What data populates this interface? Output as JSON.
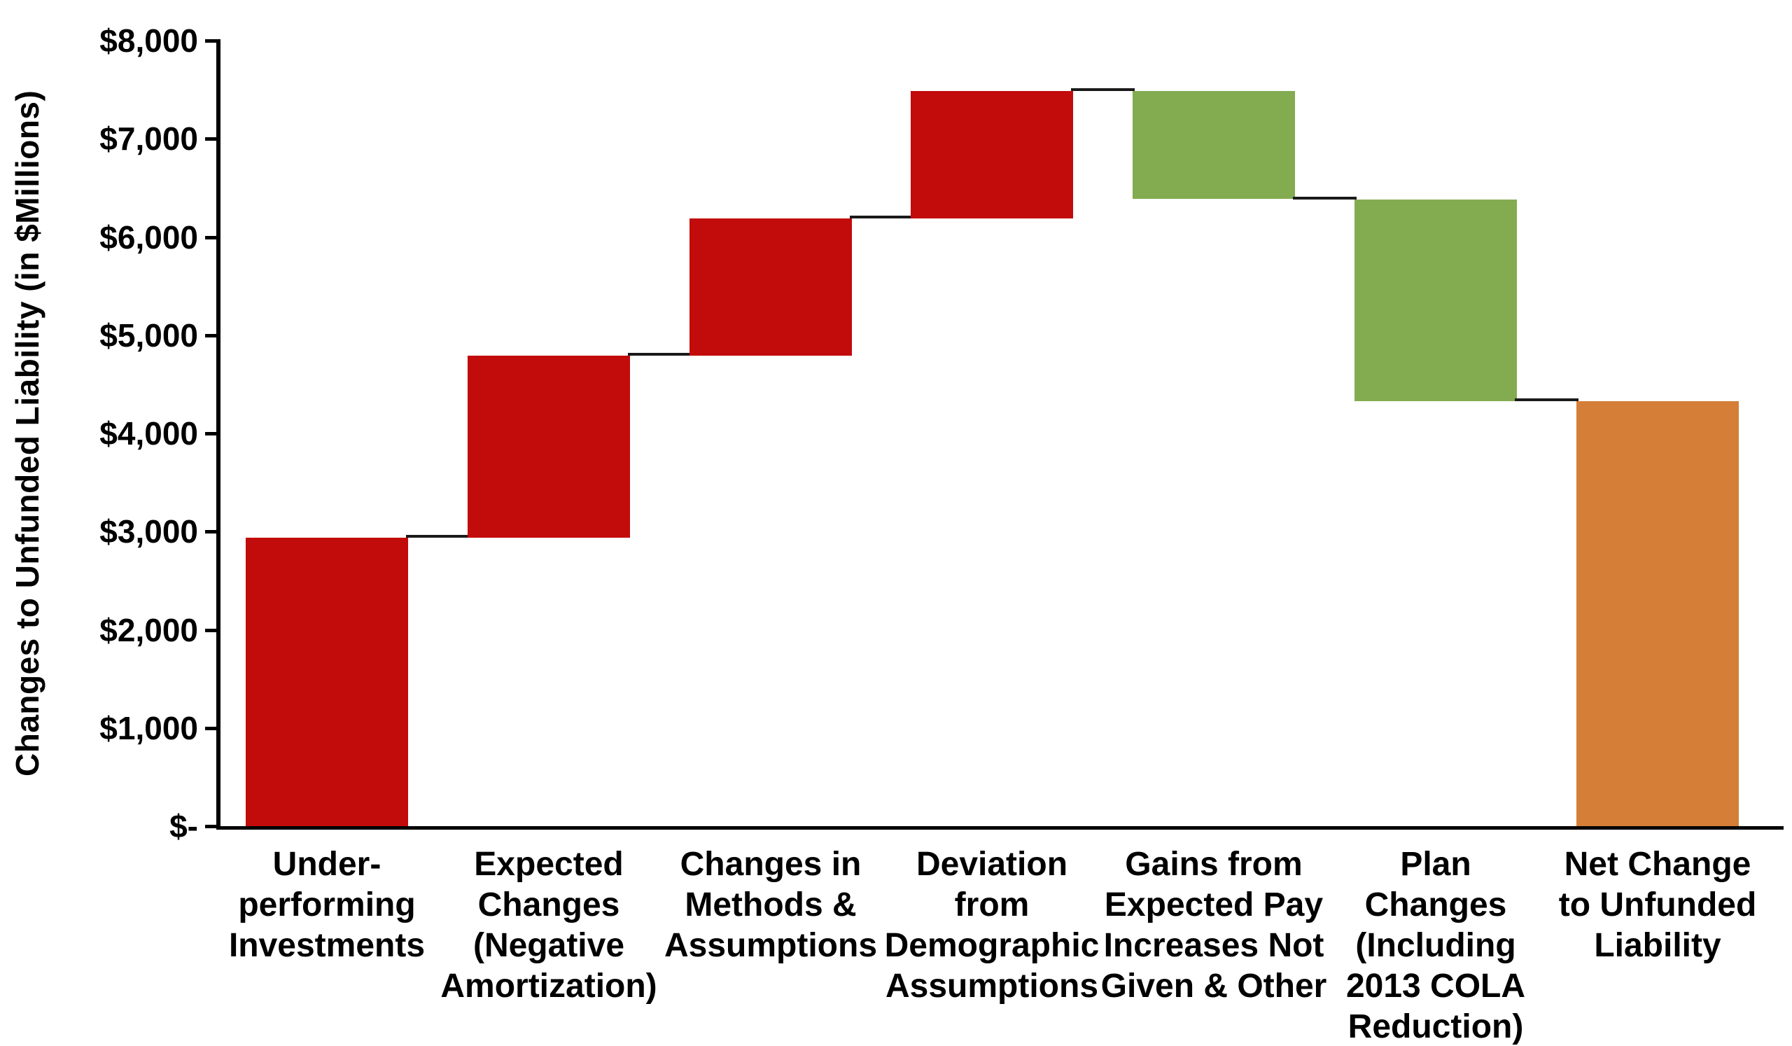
{
  "chart_data": {
    "type": "waterfall",
    "title": "",
    "ylabel": "Changes to Unfunded Liability (in  $Millions)",
    "xlabel": "",
    "value_unit": "$ Millions",
    "ylim": [
      0,
      8000
    ],
    "grid": false,
    "legend": false,
    "y_ticks": [
      {
        "value": 8000,
        "label": "$8,000"
      },
      {
        "value": 7000,
        "label": "$7,000"
      },
      {
        "value": 6000,
        "label": "$6,000"
      },
      {
        "value": 5000,
        "label": "$5,000"
      },
      {
        "value": 4000,
        "label": "$4,000"
      },
      {
        "value": 3000,
        "label": "$3,000"
      },
      {
        "value": 2000,
        "label": "$2,000"
      },
      {
        "value": 1000,
        "label": "$1,000"
      },
      {
        "value": 0,
        "label": "$-"
      }
    ],
    "colors": {
      "increase": "#C20B0B",
      "decrease": "#83AC50",
      "total": "#D57E38",
      "connector": "#1A1A1A",
      "axis": "#000000"
    },
    "categories": [
      "Under-performing Investments",
      "Expected Changes (Negative Amortization)",
      "Changes in Methods & Assumptions",
      "Deviation from Demographic Assumptions",
      "Gains from Expected Pay Increases Not Given & Other",
      "Plan Changes (Including 2013 COLA Reduction)",
      "Net Change to Unfunded Liability"
    ],
    "bars": [
      {
        "label_lines": [
          "Under-",
          "performing",
          "Investments"
        ],
        "kind": "increase",
        "delta": 2940,
        "start": 0,
        "end": 2940
      },
      {
        "label_lines": [
          "Expected",
          "Changes",
          "(Negative",
          "Amortization)"
        ],
        "kind": "increase",
        "delta": 1855,
        "start": 2940,
        "end": 4795
      },
      {
        "label_lines": [
          "Changes in",
          "Methods &",
          "Assumptions"
        ],
        "kind": "increase",
        "delta": 1395,
        "start": 4795,
        "end": 6190
      },
      {
        "label_lines": [
          "Deviation",
          "from",
          "Demographic",
          "Assumptions"
        ],
        "kind": "increase",
        "delta": 1295,
        "start": 6190,
        "end": 7485
      },
      {
        "label_lines": [
          "Gains from",
          "Expected Pay",
          "Increases Not",
          "Given & Other"
        ],
        "kind": "decrease",
        "delta": -1100,
        "start": 7485,
        "end": 6385
      },
      {
        "label_lines": [
          "Plan",
          "Changes",
          "(Including",
          "2013 COLA",
          "Reduction)"
        ],
        "kind": "decrease",
        "delta": -2055,
        "start": 6385,
        "end": 4330
      },
      {
        "label_lines": [
          "Net Change",
          "to Unfunded",
          "Liability"
        ],
        "kind": "total",
        "delta": 4330,
        "start": 0,
        "end": 4330
      }
    ]
  }
}
